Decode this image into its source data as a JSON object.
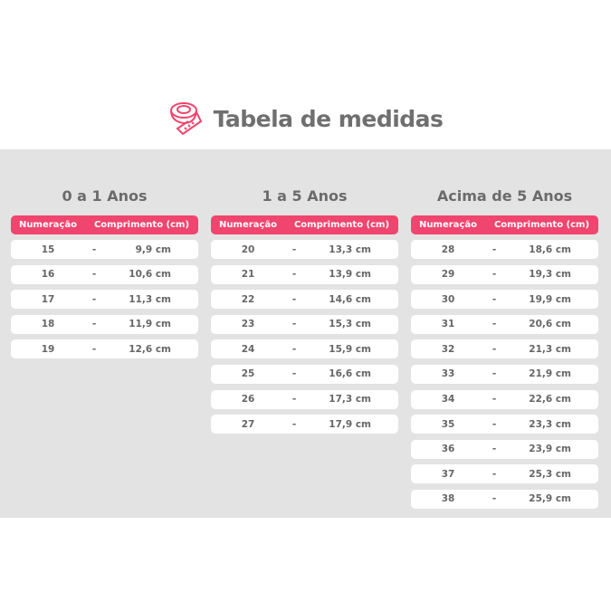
{
  "title": "Tabela de medidas",
  "colors": {
    "accent": "#f0456e",
    "panel": "#e3e3e3",
    "text": "#6f6f6f"
  },
  "icon": "measuring-tape-icon",
  "headers": {
    "size": "Numeração",
    "length": "Comprimento (cm)"
  },
  "separator": "-",
  "groups": [
    {
      "title": "0 a 1 Anos",
      "rows": [
        [
          "15",
          "9,9 cm"
        ],
        [
          "16",
          "10,6 cm"
        ],
        [
          "17",
          "11,3 cm"
        ],
        [
          "18",
          "11,9 cm"
        ],
        [
          "19",
          "12,6 cm"
        ]
      ]
    },
    {
      "title": "1 a 5 Anos",
      "rows": [
        [
          "20",
          "13,3 cm"
        ],
        [
          "21",
          "13,9 cm"
        ],
        [
          "22",
          "14,6 cm"
        ],
        [
          "23",
          "15,3 cm"
        ],
        [
          "24",
          "15,9 cm"
        ],
        [
          "25",
          "16,6 cm"
        ],
        [
          "26",
          "17,3 cm"
        ],
        [
          "27",
          "17,9 cm"
        ]
      ]
    },
    {
      "title": "Acima de 5 Anos",
      "rows": [
        [
          "28",
          "18,6 cm"
        ],
        [
          "29",
          "19,3 cm"
        ],
        [
          "30",
          "19,9 cm"
        ],
        [
          "31",
          "20,6 cm"
        ],
        [
          "32",
          "21,3 cm"
        ],
        [
          "33",
          "21,9 cm"
        ],
        [
          "34",
          "22,6 cm"
        ],
        [
          "35",
          "23,3 cm"
        ],
        [
          "36",
          "23,9 cm"
        ],
        [
          "37",
          "25,3 cm"
        ],
        [
          "38",
          "25,9 cm"
        ]
      ]
    }
  ]
}
